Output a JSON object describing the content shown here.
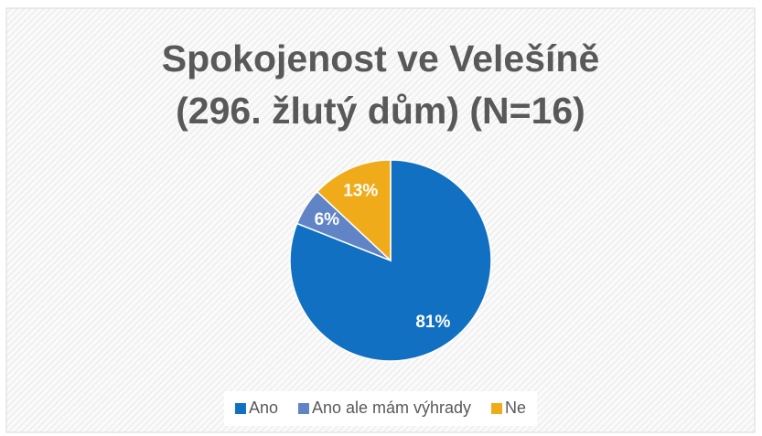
{
  "chart_data": {
    "type": "pie",
    "title": "Spokojenost ve Velešíně (296. žlutý dům) (N=16)",
    "categories": [
      "Ano",
      "Ano ale mám výhrady",
      "Ne"
    ],
    "values": [
      81,
      6,
      13
    ],
    "value_labels": [
      "81%",
      "6%",
      "13%"
    ],
    "colors": [
      "#1170c1",
      "#6184c6",
      "#f0ab1a"
    ],
    "legend": "bottom"
  }
}
